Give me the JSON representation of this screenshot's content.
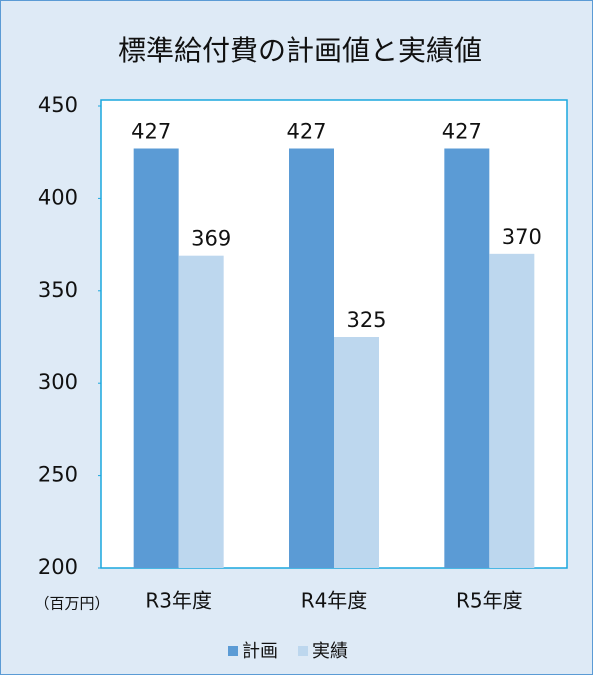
{
  "chart_data": {
    "type": "bar",
    "title": "標準給付費の計画値と実績値",
    "unit_label": "（百万円）",
    "categories": [
      "R3年度",
      "R4年度",
      "R5年度"
    ],
    "series": [
      {
        "name": "計画",
        "color": "#5b9bd5",
        "values": [
          427,
          427,
          427
        ]
      },
      {
        "name": "実績",
        "color": "#bdd7ee",
        "values": [
          369,
          325,
          370
        ]
      }
    ],
    "ylim": [
      200,
      450
    ],
    "yticks": [
      200,
      250,
      300,
      350,
      400,
      450
    ],
    "legend": "bottom"
  }
}
